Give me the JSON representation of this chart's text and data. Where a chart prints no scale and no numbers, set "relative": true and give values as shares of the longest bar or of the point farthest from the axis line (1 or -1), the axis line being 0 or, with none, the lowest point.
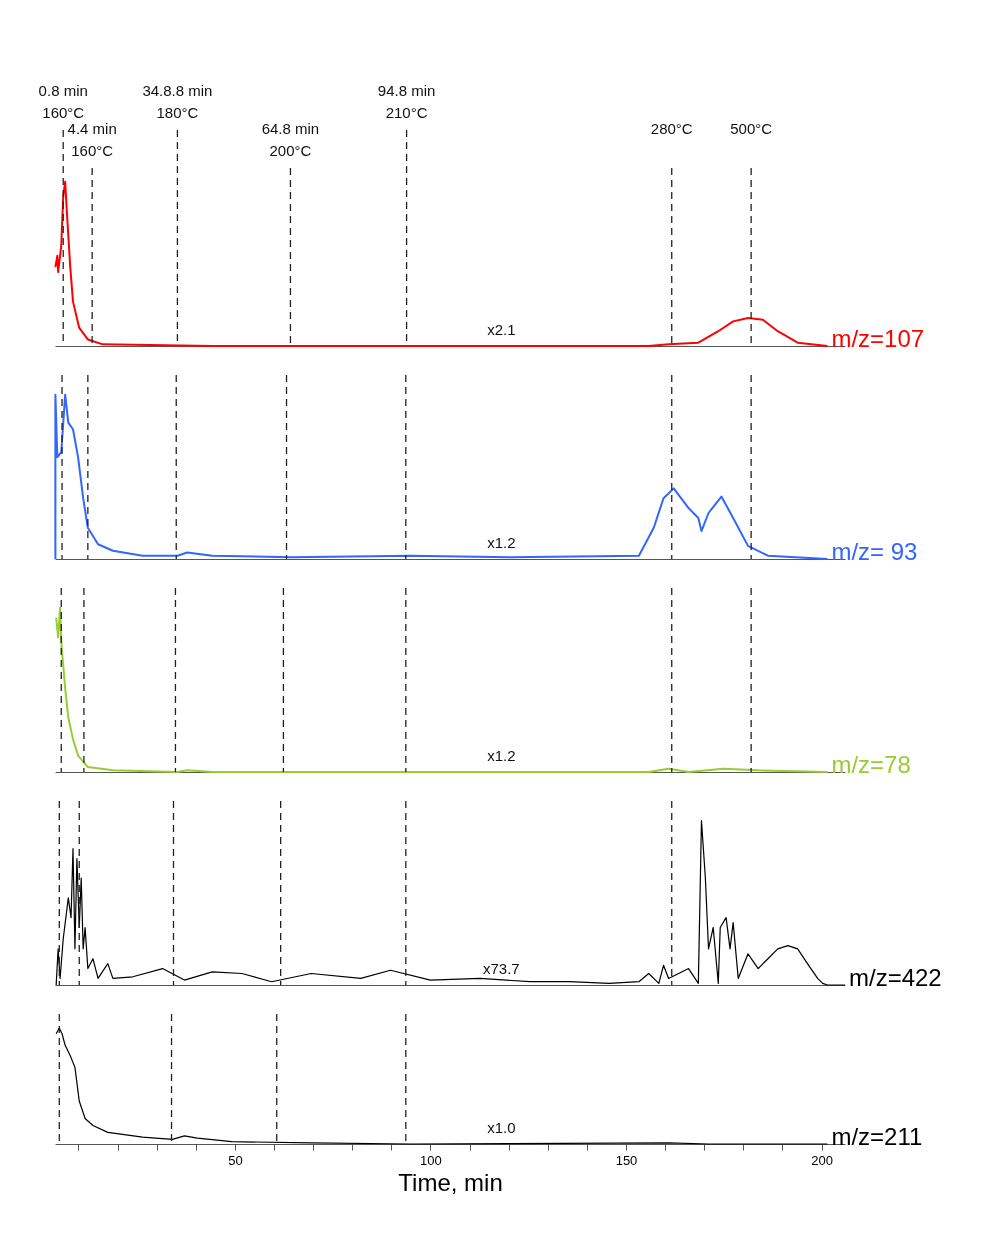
{
  "chart_data": [
    {
      "type": "line",
      "relative": true,
      "xlim": [
        4,
        206
      ],
      "tick_labels": false,
      "annotations": [
        "x2.1"
      ],
      "series": [
        {
          "name": "m/z=107",
          "color": "#ff0000",
          "x": [
            4.1,
            4.6,
            4.8,
            5.6,
            6.1,
            6.6,
            7.1,
            7.9,
            8.6,
            10.2,
            12.4,
            16.2,
            44.2,
            94.9,
            155.8,
            160.9,
            168.5,
            173.6,
            177.4,
            181.2,
            185.0,
            188.8,
            193.9,
            201.5
          ],
          "values": [
            0.48,
            0.55,
            0.45,
            0.61,
            0.91,
            1.0,
            0.79,
            0.48,
            0.27,
            0.11,
            0.04,
            0.01,
            0,
            0,
            0,
            0.01,
            0.02,
            0.09,
            0.15,
            0.17,
            0.16,
            0.09,
            0.02,
            0
          ]
        }
      ],
      "ref_lines": [
        {
          "axis": "x",
          "value": 6.1,
          "label": "0.8 min\n160°C",
          "line_style": "dashed"
        },
        {
          "axis": "x",
          "value": 13.5,
          "label": "4.4 min\n160°C",
          "line_style": "dashed"
        },
        {
          "axis": "x",
          "value": 35.3,
          "label": "34.8.8 min\n180°C",
          "line_style": "dashed"
        },
        {
          "axis": "x",
          "value": 64.2,
          "label": "64.8 min\n200°C",
          "line_style": "dashed"
        },
        {
          "axis": "x",
          "value": 93.9,
          "label": "94.8 min\n210°C",
          "line_style": "dashed"
        },
        {
          "axis": "x",
          "value": 161.7,
          "label": "280°C",
          "line_style": "dashed"
        },
        {
          "axis": "x",
          "value": 182,
          "label": "500°C",
          "line_style": "dashed"
        }
      ]
    },
    {
      "type": "line",
      "relative": true,
      "xlim": [
        4,
        206
      ],
      "tick_labels": false,
      "annotations": [
        "x1.2"
      ],
      "series": [
        {
          "name": "m/z= 93",
          "color": "#3366ff",
          "x": [
            4.1,
            4.1,
            4.6,
            5.6,
            6.6,
            7.4,
            8.6,
            9.9,
            11.2,
            12.4,
            15.0,
            18.8,
            26.4,
            35.3,
            37.8,
            44.2,
            64.5,
            94.9,
            120.3,
            153.3,
            157.1,
            159.6,
            162.2,
            166.0,
            168.5,
            169.3,
            171.1,
            174.4,
            177.4,
            181.2,
            186.3,
            201.5
          ],
          "values": [
            0,
            1.0,
            0.62,
            0.65,
            1.0,
            0.83,
            0.79,
            0.62,
            0.37,
            0.19,
            0.09,
            0.05,
            0.02,
            0.02,
            0.04,
            0.02,
            0.01,
            0.02,
            0.01,
            0.02,
            0.19,
            0.37,
            0.43,
            0.31,
            0.25,
            0.17,
            0.28,
            0.38,
            0.25,
            0.08,
            0.02,
            0
          ]
        }
      ],
      "ref_lines": [
        {
          "axis": "x",
          "value": 5.8,
          "line_style": "dashed"
        },
        {
          "axis": "x",
          "value": 12.4,
          "line_style": "dashed"
        },
        {
          "axis": "x",
          "value": 35.0,
          "line_style": "dashed"
        },
        {
          "axis": "x",
          "value": 63.2,
          "line_style": "dashed"
        },
        {
          "axis": "x",
          "value": 93.7,
          "line_style": "dashed"
        },
        {
          "axis": "x",
          "value": 161.7,
          "line_style": "dashed"
        },
        {
          "axis": "x",
          "value": 182,
          "line_style": "dashed"
        }
      ]
    },
    {
      "type": "line",
      "relative": true,
      "xlim": [
        4,
        206
      ],
      "tick_labels": false,
      "annotations": [
        "x1.2"
      ],
      "series": [
        {
          "name": "m/z=78",
          "color": "#99cc33",
          "x": [
            4.3,
            4.8,
            5.3,
            5.6,
            6.6,
            7.4,
            8.6,
            9.9,
            12.4,
            18.8,
            35.3,
            37.8,
            44.2,
            94.9,
            155.8,
            160.9,
            166.0,
            174.9,
            183.8,
            201.5
          ],
          "values": [
            0.94,
            0.82,
            1.0,
            0.79,
            0.51,
            0.33,
            0.2,
            0.1,
            0.03,
            0.01,
            0,
            0.01,
            0,
            0,
            0,
            0.02,
            0,
            0.02,
            0.01,
            0
          ]
        }
      ],
      "ref_lines": [
        {
          "axis": "x",
          "value": 5.6,
          "line_style": "dashed"
        },
        {
          "axis": "x",
          "value": 11.4,
          "line_style": "dashed"
        },
        {
          "axis": "x",
          "value": 34.8,
          "line_style": "dashed"
        },
        {
          "axis": "x",
          "value": 62.4,
          "line_style": "dashed"
        },
        {
          "axis": "x",
          "value": 93.7,
          "line_style": "dashed"
        },
        {
          "axis": "x",
          "value": 161.7,
          "line_style": "dashed"
        },
        {
          "axis": "x",
          "value": 182,
          "line_style": "dashed"
        }
      ]
    },
    {
      "type": "line",
      "relative": true,
      "xlim": [
        4,
        206
      ],
      "tick_labels": false,
      "annotations": [
        "x73.7"
      ],
      "series": [
        {
          "name": "m/z=422",
          "color": "#000000",
          "x": [
            4.3,
            4.8,
            5.3,
            6.1,
            7.4,
            8.1,
            8.6,
            9.1,
            9.6,
            10.2,
            10.7,
            11.2,
            11.7,
            12.4,
            13.7,
            15.0,
            17.5,
            18.8,
            23.9,
            31.5,
            37.1,
            44.2,
            51.8,
            59.4,
            69.5,
            82.2,
            89.8,
            100.0,
            112.7,
            125.4,
            135.5,
            145.7,
            153.3,
            155.8,
            158.4,
            159.6,
            160.9,
            166.0,
            168.5,
            169.3,
            170.3,
            171.1,
            172.3,
            173.6,
            174.1,
            175.6,
            176.6,
            177.4,
            178.7,
            181.2,
            183.8,
            186.3,
            188.8,
            191.4,
            193.9,
            196.4,
            199.0,
            200.3,
            201.5,
            206
          ],
          "values": [
            0,
            0.22,
            0.04,
            0.28,
            0.53,
            0.41,
            0.83,
            0.22,
            0.77,
            0.35,
            0.65,
            0.22,
            0.35,
            0.1,
            0.16,
            0.04,
            0.13,
            0.04,
            0.05,
            0.1,
            0.03,
            0.08,
            0.07,
            0.02,
            0.07,
            0.04,
            0.09,
            0.03,
            0.04,
            0.02,
            0.02,
            0.01,
            0.02,
            0.07,
            0.01,
            0.12,
            0.04,
            0.1,
            0.01,
            1.0,
            0.65,
            0.22,
            0.35,
            0.01,
            0.35,
            0.41,
            0.22,
            0.38,
            0.04,
            0.19,
            0.1,
            0.16,
            0.22,
            0.24,
            0.22,
            0.13,
            0.04,
            0.01,
            0,
            0
          ]
        }
      ],
      "ref_lines": [
        {
          "axis": "x",
          "value": 5.1,
          "line_style": "dashed"
        },
        {
          "axis": "x",
          "value": 10.2,
          "line_style": "dashed"
        },
        {
          "axis": "x",
          "value": 34.3,
          "line_style": "dashed"
        },
        {
          "axis": "x",
          "value": 61.7,
          "line_style": "dashed"
        },
        {
          "axis": "x",
          "value": 93.7,
          "line_style": "dashed"
        },
        {
          "axis": "x",
          "value": 161.7,
          "line_style": "dashed"
        }
      ]
    },
    {
      "type": "line",
      "relative": true,
      "xlim": [
        4,
        206
      ],
      "xlabel": "Time, min",
      "annotations": [
        "x1.0"
      ],
      "xticks": [
        {
          "value": 10,
          "label": null
        },
        {
          "value": 20,
          "label": null
        },
        {
          "value": 30,
          "label": null
        },
        {
          "value": 40,
          "label": null
        },
        50,
        {
          "value": 60,
          "label": null
        },
        {
          "value": 70,
          "label": null
        },
        {
          "value": 80,
          "label": null
        },
        {
          "value": 90,
          "label": null
        },
        100,
        {
          "value": 110,
          "label": null
        },
        {
          "value": 120,
          "label": null
        },
        {
          "value": 130,
          "label": null
        },
        {
          "value": 140,
          "label": null
        },
        150,
        {
          "value": 160,
          "label": null
        },
        {
          "value": 170,
          "label": null
        },
        {
          "value": 180,
          "label": null
        },
        {
          "value": 190,
          "label": null
        },
        200
      ],
      "series": [
        {
          "name": "m/z=211",
          "color": "#000000",
          "x": [
            4.3,
            5.1,
            5.8,
            6.6,
            7.9,
            9.1,
            10.2,
            11.7,
            13.7,
            17.5,
            26.4,
            34.0,
            37.1,
            40.4,
            49.2,
            69.5,
            94.9,
            160.9,
            171.1,
            201.5
          ],
          "values": [
            0.95,
            1.0,
            0.95,
            0.85,
            0.76,
            0.66,
            0.37,
            0.22,
            0.16,
            0.1,
            0.06,
            0.04,
            0.07,
            0.05,
            0.02,
            0.01,
            0,
            0.01,
            0,
            0
          ]
        }
      ],
      "ref_lines": [
        {
          "axis": "x",
          "value": 5.1,
          "line_style": "dashed"
        },
        {
          "axis": "x",
          "value": 33.8,
          "line_style": "dashed"
        },
        {
          "axis": "x",
          "value": 60.7,
          "line_style": "dashed"
        },
        {
          "axis": "x",
          "value": 93.7,
          "line_style": "dashed"
        }
      ]
    }
  ]
}
